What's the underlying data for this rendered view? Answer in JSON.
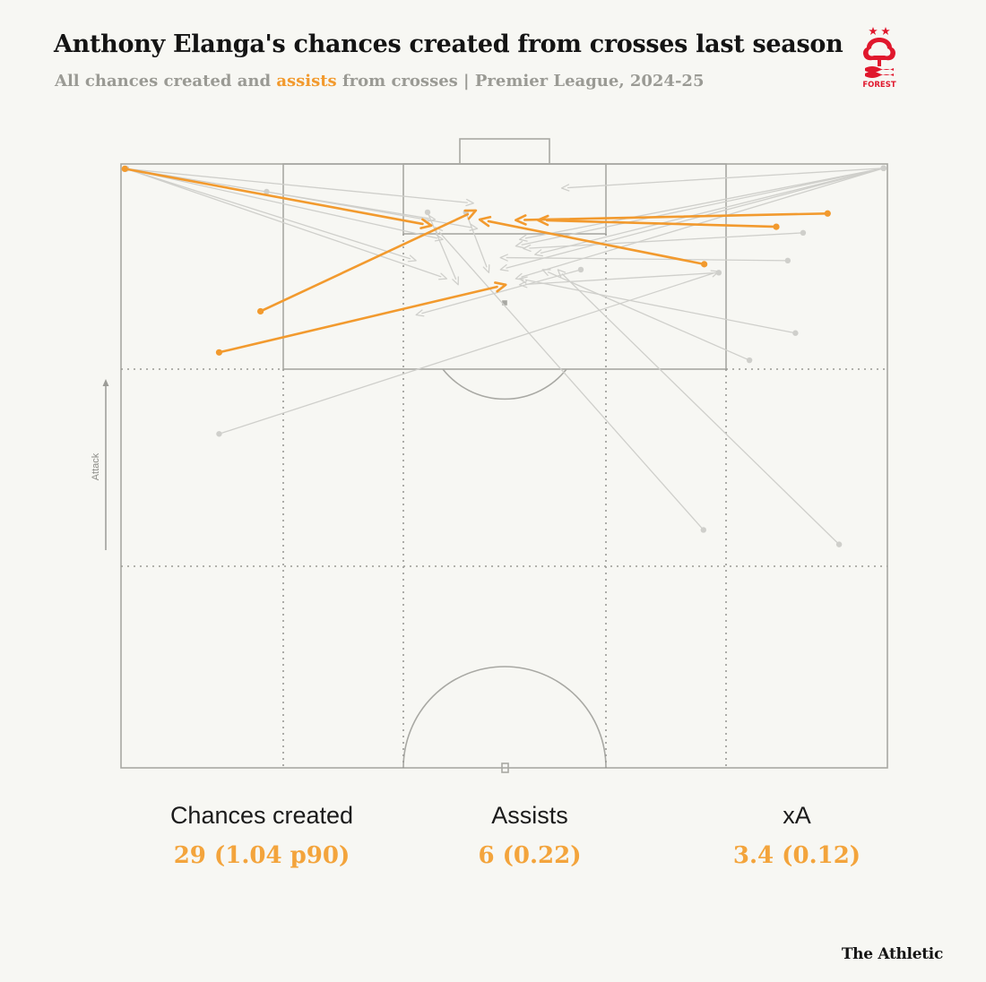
{
  "header": {
    "title": "Anthony Elanga's chances created from crosses last season",
    "subtitle_prefix": "All chances created and ",
    "subtitle_highlight": "assists",
    "subtitle_suffix": " from crosses | Premier League, 2024-25"
  },
  "logo": {
    "text": "FOREST",
    "color": "#e0182d"
  },
  "colors": {
    "background": "#f7f7f3",
    "pitch_lines": "#a8a8a3",
    "chance": "#cfcfcb",
    "assist": "#f29a2e"
  },
  "chart_data": {
    "type": "scatter",
    "description_units": "pitch coordinates: x 0-100 left to right, y 0-100 from top goal line downward (attacking top goal)",
    "attack_label": "Attack",
    "chances": [
      {
        "from": [
          0.7,
          0.8
        ],
        "to": [
          41,
          9.2
        ]
      },
      {
        "from": [
          0.7,
          0.8
        ],
        "to": [
          46,
          6.5
        ]
      },
      {
        "from": [
          0.7,
          0.8
        ],
        "to": [
          42,
          12.5
        ]
      },
      {
        "from": [
          0.7,
          0.8
        ],
        "to": [
          38.5,
          16
        ]
      },
      {
        "from": [
          0.7,
          0.8
        ],
        "to": [
          42.5,
          19
        ]
      },
      {
        "from": [
          19,
          4.6
        ],
        "to": [
          46.5,
          10.7
        ]
      },
      {
        "from": [
          99.5,
          0.7
        ],
        "to": [
          57.5,
          4
        ]
      },
      {
        "from": [
          99.5,
          0.7
        ],
        "to": [
          52,
          12.5
        ]
      },
      {
        "from": [
          99.5,
          0.7
        ],
        "to": [
          51.5,
          13.6
        ]
      },
      {
        "from": [
          99.5,
          0.7
        ],
        "to": [
          54,
          15
        ]
      },
      {
        "from": [
          99.5,
          0.7
        ],
        "to": [
          49.5,
          17.5
        ]
      },
      {
        "from": [
          99.5,
          0.7
        ],
        "to": [
          51.5,
          19
        ]
      },
      {
        "from": [
          89,
          11.4
        ],
        "to": [
          52.5,
          14
        ]
      },
      {
        "from": [
          87,
          16
        ],
        "to": [
          49.5,
          15.5
        ]
      },
      {
        "from": [
          78,
          18
        ],
        "to": [
          52,
          20
        ]
      },
      {
        "from": [
          88,
          28
        ],
        "to": [
          52,
          19
        ]
      },
      {
        "from": [
          82,
          32.5
        ],
        "to": [
          55,
          17.5
        ]
      },
      {
        "from": [
          12.8,
          44.7
        ],
        "to": [
          78,
          17.8
        ]
      },
      {
        "from": [
          76,
          60.6
        ],
        "to": [
          41,
          10.5
        ]
      },
      {
        "from": [
          93.7,
          63
        ],
        "to": [
          57,
          17.5
        ]
      },
      {
        "from": [
          60,
          17.5
        ],
        "to": [
          38.5,
          25
        ]
      },
      {
        "from": [
          40,
          8
        ],
        "to": [
          44,
          20
        ]
      },
      {
        "from": [
          45,
          8
        ],
        "to": [
          48,
          18
        ]
      }
    ],
    "assists": [
      {
        "from": [
          0.5,
          0.8
        ],
        "to": [
          40.5,
          10.2
        ]
      },
      {
        "from": [
          18.2,
          24.4
        ],
        "to": [
          46.3,
          7.7
        ]
      },
      {
        "from": [
          12.8,
          31.2
        ],
        "to": [
          50.2,
          20
        ]
      },
      {
        "from": [
          76.1,
          16.6
        ],
        "to": [
          46.8,
          9.2
        ]
      },
      {
        "from": [
          92.2,
          8.2
        ],
        "to": [
          51.5,
          9.3
        ]
      },
      {
        "from": [
          85.5,
          10.4
        ],
        "to": [
          54.4,
          9.3
        ]
      }
    ]
  },
  "stats": [
    {
      "label": "Chances created",
      "value": "29 (1.04 p90)"
    },
    {
      "label": "Assists",
      "value": "6 (0.22)"
    },
    {
      "label": "xA",
      "value": "3.4 (0.12)"
    }
  ],
  "footer": {
    "brand": "The Athletic"
  }
}
